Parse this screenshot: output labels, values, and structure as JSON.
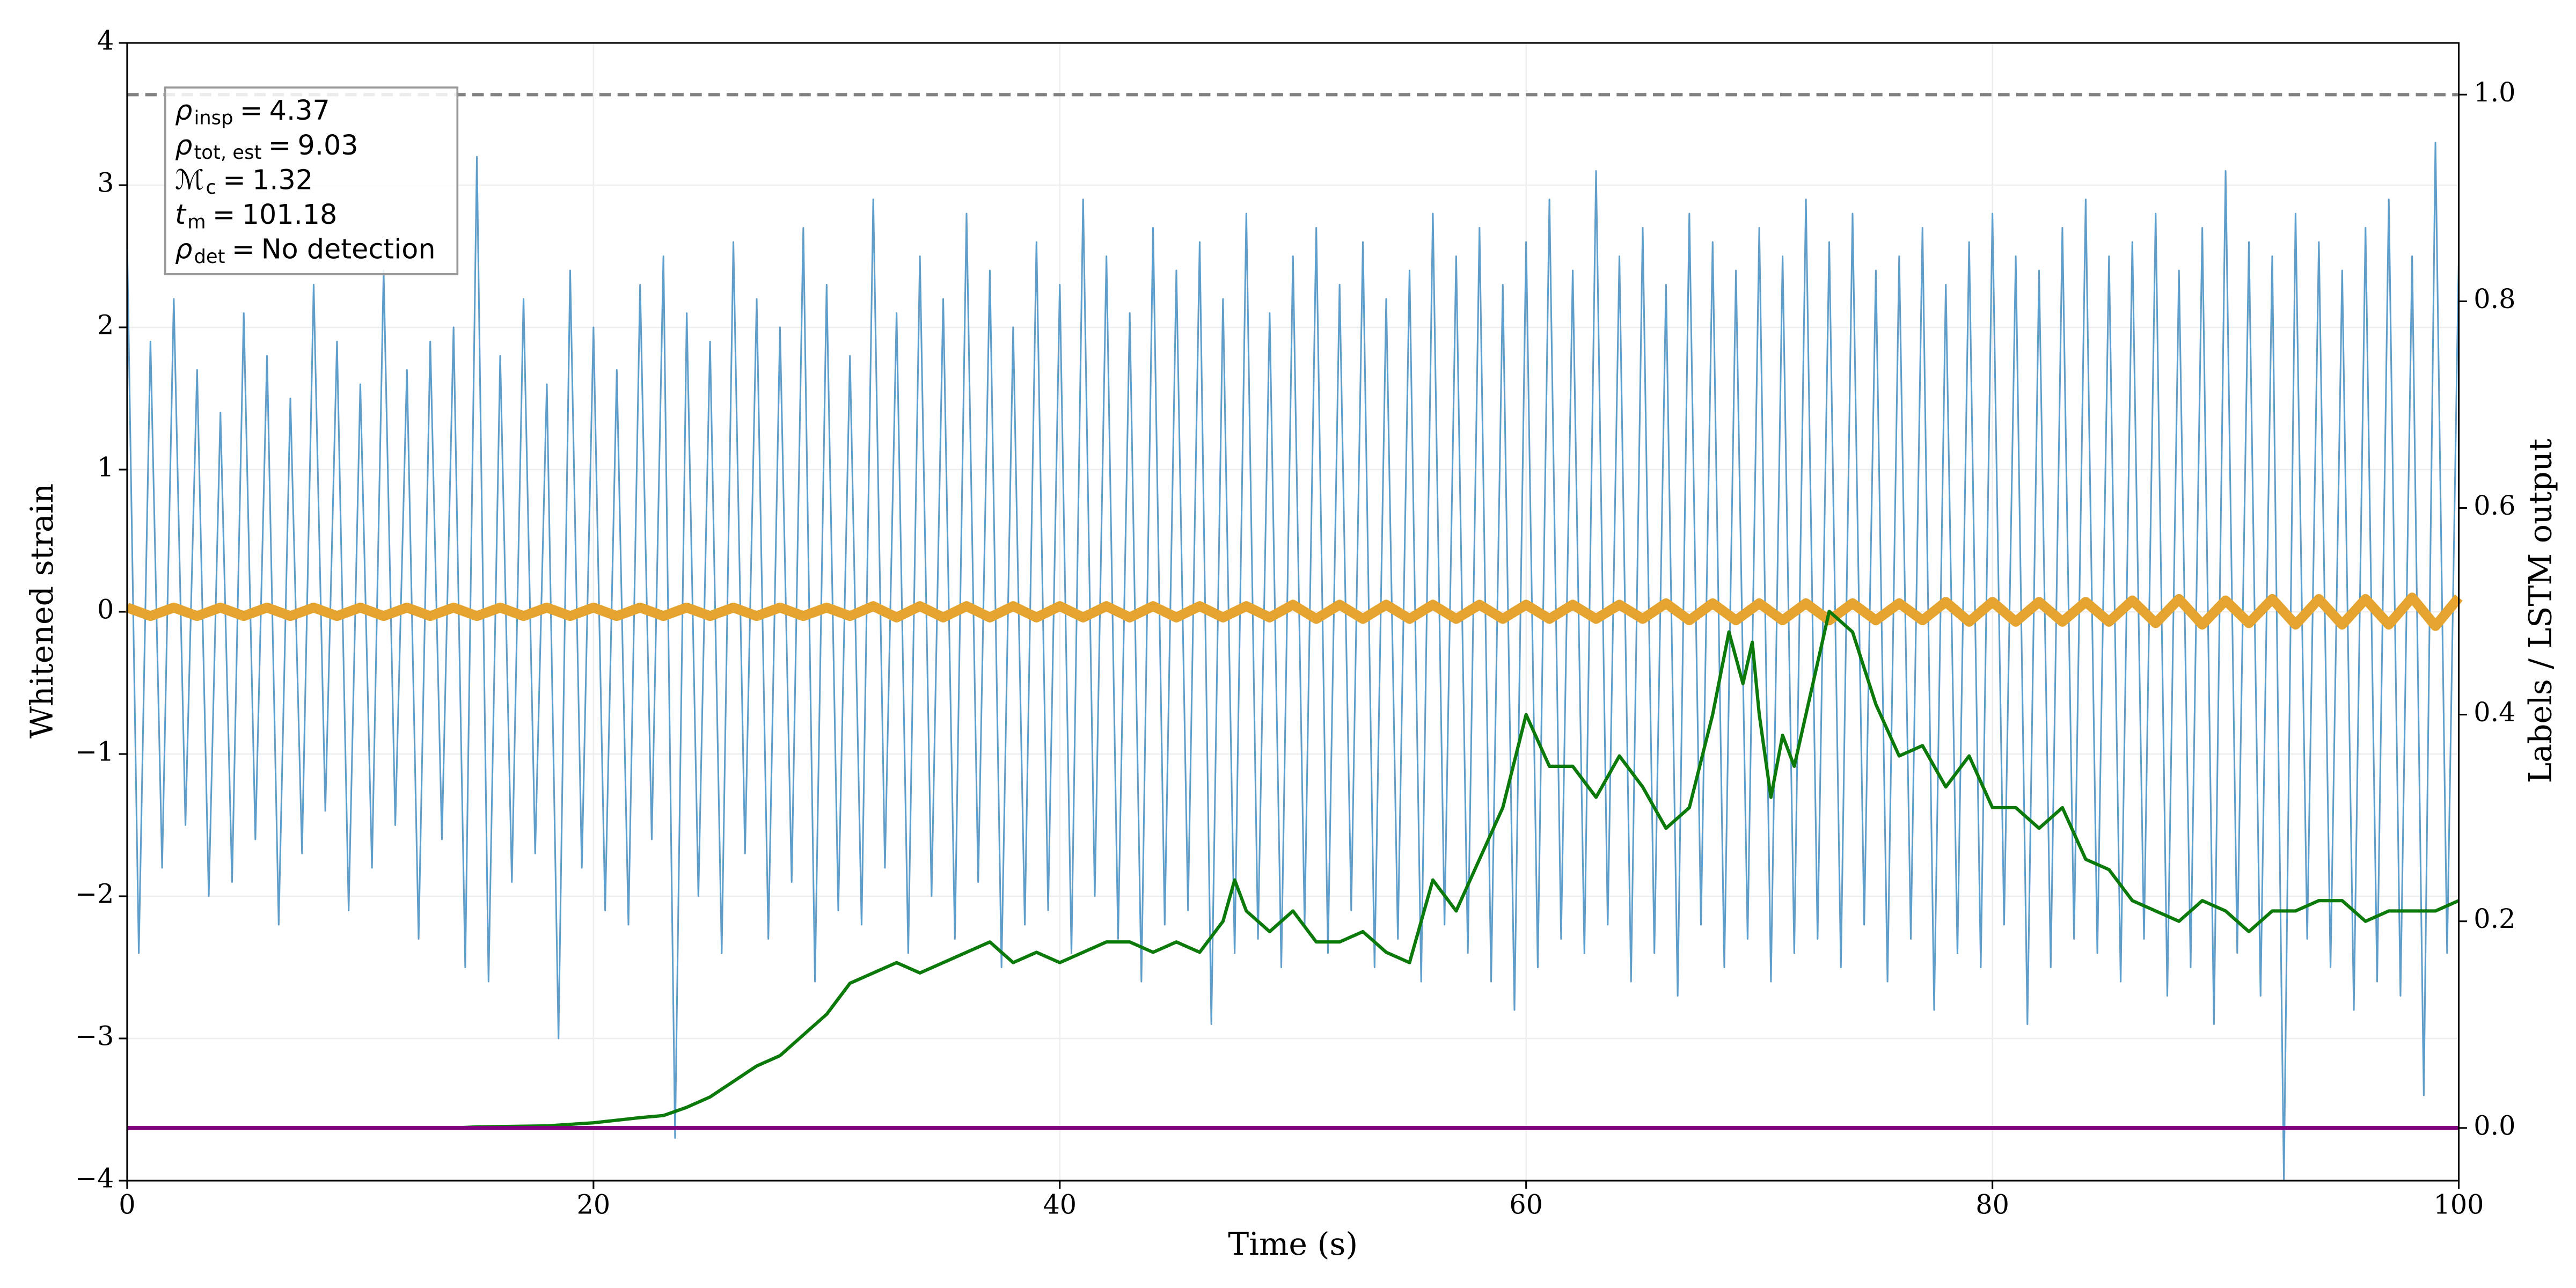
{
  "chart_data": {
    "type": "line",
    "xlabel": "Time (s)",
    "ylabel": "Whitened strain",
    "y2label": "Labels / LSTM output",
    "xlim": [
      0,
      100
    ],
    "ylim": [
      -4,
      4
    ],
    "y2lim": [
      -0.051,
      1.05
    ],
    "xticks": [
      0,
      20,
      40,
      60,
      80,
      100
    ],
    "yticks": [
      {
        "value": -4,
        "label": "−4"
      },
      {
        "value": -3,
        "label": "−3"
      },
      {
        "value": -2,
        "label": "−2"
      },
      {
        "value": -1,
        "label": "−1"
      },
      0,
      1,
      2,
      3,
      4
    ],
    "y2ticks": [
      {
        "value": 0,
        "label": "0.0"
      },
      0.2,
      0.4,
      0.6,
      0.8,
      {
        "value": 1,
        "label": "1.0"
      }
    ],
    "grid": true,
    "series": [
      {
        "color": "#5f9ecb",
        "axis": "y",
        "x": [
          0,
          0.5,
          1,
          1.5,
          2,
          2.5,
          3,
          3.5,
          4,
          4.5,
          5,
          5.5,
          6,
          6.5,
          7,
          7.5,
          8,
          8.5,
          9,
          9.5,
          10,
          10.5,
          11,
          11.5,
          12,
          12.5,
          13,
          13.5,
          14,
          14.5,
          15,
          15.5,
          16,
          16.5,
          17,
          17.5,
          18,
          18.5,
          19,
          19.5,
          20,
          20.5,
          21,
          21.5,
          22,
          22.5,
          23,
          23.5,
          24,
          24.5,
          25,
          25.5,
          26,
          26.5,
          27,
          27.5,
          28,
          28.5,
          29,
          29.5,
          30,
          30.5,
          31,
          31.5,
          32,
          32.5,
          33,
          33.5,
          34,
          34.5,
          35,
          35.5,
          36,
          36.5,
          37,
          37.5,
          38,
          38.5,
          39,
          39.5,
          40,
          40.5,
          41,
          41.5,
          42,
          42.5,
          43,
          43.5,
          44,
          44.5,
          45,
          45.5,
          46,
          46.5,
          47,
          47.5,
          48,
          48.5,
          49,
          49.5,
          50,
          50.5,
          51,
          51.5,
          52,
          52.5,
          53,
          53.5,
          54,
          54.5,
          55,
          55.5,
          56,
          56.5,
          57,
          57.5,
          58,
          58.5,
          59,
          59.5,
          60,
          60.5,
          61,
          61.5,
          62,
          62.5,
          63,
          63.5,
          64,
          64.5,
          65,
          65.5,
          66,
          66.5,
          67,
          67.5,
          68,
          68.5,
          69,
          69.5,
          70,
          70.5,
          71,
          71.5,
          72,
          72.5,
          73,
          73.5,
          74,
          74.5,
          75,
          75.5,
          76,
          76.5,
          77,
          77.5,
          78,
          78.5,
          79,
          79.5,
          80,
          80.5,
          81,
          81.5,
          82,
          82.5,
          83,
          83.5,
          84,
          84.5,
          85,
          85.5,
          86,
          86.5,
          87,
          87.5,
          88,
          88.5,
          89,
          89.5,
          90,
          90.5,
          91,
          91.5,
          92,
          92.5,
          93,
          93.5,
          94,
          94.5,
          95,
          95.5,
          96,
          96.5,
          97,
          97.5,
          98,
          98.5,
          99,
          99.5,
          100
        ],
        "values": [
          2.6,
          -2.4,
          1.9,
          -1.8,
          2.2,
          -1.5,
          1.7,
          -2.0,
          1.4,
          -1.9,
          2.1,
          -1.6,
          1.8,
          -2.2,
          1.5,
          -1.7,
          2.3,
          -1.4,
          1.9,
          -2.1,
          1.6,
          -1.8,
          2.4,
          -1.5,
          1.7,
          -2.3,
          1.9,
          -1.6,
          2.0,
          -2.5,
          3.2,
          -2.6,
          1.8,
          -1.9,
          2.2,
          -1.7,
          1.6,
          -3.0,
          2.4,
          -1.8,
          2.0,
          -2.1,
          1.7,
          -2.2,
          2.3,
          -1.6,
          2.5,
          -3.7,
          2.1,
          -2.0,
          1.9,
          -2.4,
          2.6,
          -1.7,
          2.2,
          -2.3,
          2.0,
          -1.9,
          2.7,
          -2.6,
          2.3,
          -2.1,
          1.8,
          -2.2,
          2.9,
          -1.8,
          2.1,
          -2.4,
          2.5,
          -2.0,
          2.2,
          -2.3,
          2.8,
          -1.9,
          2.4,
          -2.5,
          2.0,
          -2.2,
          2.6,
          -2.1,
          2.3,
          -2.4,
          2.9,
          -2.0,
          2.5,
          -2.3,
          2.1,
          -2.6,
          2.7,
          -2.2,
          2.4,
          -2.1,
          2.6,
          -2.9,
          2.2,
          -2.4,
          2.8,
          -2.3,
          2.1,
          -2.5,
          2.5,
          -2.2,
          2.7,
          -2.4,
          2.3,
          -2.1,
          2.6,
          -2.5,
          2.2,
          -2.3,
          2.4,
          -2.6,
          2.8,
          -2.2,
          2.5,
          -2.4,
          2.7,
          -2.6,
          2.3,
          -2.8,
          2.6,
          -2.5,
          2.9,
          -2.3,
          2.4,
          -2.4,
          3.1,
          -2.2,
          2.5,
          -2.6,
          2.7,
          -2.4,
          2.3,
          -2.7,
          2.8,
          -2.2,
          2.6,
          -2.5,
          2.4,
          -2.3,
          2.7,
          -2.6,
          2.5,
          -2.4,
          2.9,
          -2.3,
          2.6,
          -2.5,
          2.8,
          -2.2,
          2.4,
          -2.6,
          2.5,
          -2.3,
          2.7,
          -2.8,
          2.3,
          -2.4,
          2.6,
          -2.5,
          2.8,
          -2.2,
          2.5,
          -2.9,
          2.4,
          -2.5,
          2.7,
          -2.3,
          2.9,
          -2.4,
          2.5,
          -2.6,
          2.6,
          -2.3,
          2.8,
          -2.7,
          2.4,
          -2.5,
          2.7,
          -2.9,
          3.1,
          -2.4,
          2.6,
          -2.7,
          2.5,
          -4.0,
          2.8,
          -2.3,
          2.6,
          -2.5,
          2.4,
          -2.8,
          2.7,
          -2.6,
          2.9,
          -2.7,
          2.5,
          -3.4,
          3.3,
          -2.4,
          2.5
        ],
        "width": 1
      },
      {
        "color": "#e5a430",
        "axis": "y",
        "x": [
          0,
          1,
          2,
          3,
          4,
          5,
          6,
          7,
          8,
          9,
          10,
          11,
          12,
          13,
          14,
          15,
          16,
          17,
          18,
          19,
          20,
          21,
          22,
          23,
          24,
          25,
          26,
          27,
          28,
          29,
          30,
          31,
          32,
          33,
          34,
          35,
          36,
          37,
          38,
          39,
          40,
          41,
          42,
          43,
          44,
          45,
          46,
          47,
          48,
          49,
          50,
          51,
          52,
          53,
          54,
          55,
          56,
          57,
          58,
          59,
          60,
          61,
          62,
          63,
          64,
          65,
          66,
          67,
          68,
          69,
          70,
          71,
          72,
          73,
          74,
          75,
          76,
          77,
          78,
          79,
          80,
          81,
          82,
          83,
          84,
          85,
          86,
          87,
          88,
          89,
          90,
          91,
          92,
          93,
          94,
          95,
          96,
          97,
          98,
          99,
          100
        ],
        "values": [
          0.03,
          -0.03,
          0.03,
          -0.03,
          0.03,
          -0.03,
          0.03,
          -0.03,
          0.03,
          -0.03,
          0.03,
          -0.03,
          0.03,
          -0.03,
          0.03,
          -0.03,
          0.03,
          -0.03,
          0.03,
          -0.03,
          0.03,
          -0.03,
          0.03,
          -0.03,
          0.03,
          -0.03,
          0.03,
          -0.03,
          0.03,
          -0.03,
          0.03,
          -0.03,
          0.04,
          -0.04,
          0.04,
          -0.04,
          0.04,
          -0.04,
          0.04,
          -0.04,
          0.04,
          -0.04,
          0.04,
          -0.04,
          0.04,
          -0.04,
          0.04,
          -0.04,
          0.04,
          -0.04,
          0.05,
          -0.05,
          0.05,
          -0.05,
          0.05,
          -0.05,
          0.05,
          -0.05,
          0.05,
          -0.05,
          0.05,
          -0.05,
          0.05,
          -0.05,
          0.05,
          -0.05,
          0.06,
          -0.06,
          0.06,
          -0.06,
          0.06,
          -0.06,
          0.06,
          -0.06,
          0.06,
          -0.06,
          0.06,
          -0.06,
          0.07,
          -0.07,
          0.07,
          -0.07,
          0.07,
          -0.07,
          0.07,
          -0.07,
          0.08,
          -0.08,
          0.09,
          -0.09,
          0.08,
          -0.08,
          0.09,
          -0.09,
          0.09,
          -0.09,
          0.09,
          -0.09,
          0.1,
          -0.1,
          0.1
        ],
        "width": 6
      },
      {
        "color": "#0b7a0b",
        "axis": "y2",
        "x": [
          0,
          14,
          15,
          18,
          20,
          22,
          23,
          24,
          25,
          26,
          27,
          28,
          29,
          30,
          31,
          32,
          33,
          34,
          35,
          36,
          37,
          38,
          39,
          40,
          41,
          42,
          43,
          44,
          45,
          46,
          47,
          47.5,
          48,
          49,
          50,
          51,
          52,
          53,
          54,
          55,
          56,
          57,
          58,
          59,
          60,
          61,
          62,
          63,
          64,
          65,
          66,
          67,
          68,
          68.7,
          69.3,
          69.7,
          70,
          70.5,
          71,
          71.5,
          72,
          73,
          74,
          75,
          76,
          77,
          78,
          79,
          80,
          81,
          82,
          83,
          84,
          85,
          86,
          87,
          88,
          89,
          90,
          91,
          92,
          93,
          94,
          95,
          96,
          97,
          98,
          99,
          100
        ],
        "values": [
          0,
          0,
          0.001,
          0.002,
          0.005,
          0.01,
          0.012,
          0.02,
          0.03,
          0.045,
          0.06,
          0.07,
          0.09,
          0.11,
          0.14,
          0.15,
          0.16,
          0.15,
          0.16,
          0.17,
          0.18,
          0.16,
          0.17,
          0.16,
          0.17,
          0.18,
          0.18,
          0.17,
          0.18,
          0.17,
          0.2,
          0.24,
          0.21,
          0.19,
          0.21,
          0.18,
          0.18,
          0.19,
          0.17,
          0.16,
          0.24,
          0.21,
          0.26,
          0.31,
          0.4,
          0.35,
          0.35,
          0.32,
          0.36,
          0.33,
          0.29,
          0.31,
          0.4,
          0.48,
          0.43,
          0.47,
          0.4,
          0.32,
          0.38,
          0.35,
          0.4,
          0.5,
          0.48,
          0.41,
          0.36,
          0.37,
          0.33,
          0.36,
          0.31,
          0.31,
          0.29,
          0.31,
          0.26,
          0.25,
          0.22,
          0.21,
          0.2,
          0.22,
          0.21,
          0.19,
          0.21,
          0.21,
          0.22,
          0.22,
          0.2,
          0.21,
          0.21,
          0.21,
          0.22
        ],
        "width": 2
      },
      {
        "color": "#800080",
        "axis": "y2",
        "x": [
          0,
          100
        ],
        "values": [
          0,
          0
        ],
        "width": 2.5
      }
    ],
    "hlines": [
      {
        "value": 1,
        "axis": "y2",
        "color": "#808080",
        "style": "dashed"
      }
    ],
    "annotation": [
      {
        "symbol": "ρ",
        "sub": "insp",
        "sep": "=",
        "value": 4.37
      },
      {
        "symbol": "ρ",
        "sub": "tot, est",
        "sep": "=",
        "value": 9.03
      },
      {
        "symbol": "ℳ",
        "sub": "c",
        "sep": "=",
        "value": 1.32
      },
      {
        "symbol": "t",
        "sub": "m",
        "sep": "=",
        "value": 101.18
      },
      {
        "symbol": "ρ",
        "sub": "det",
        "sep": "=",
        "value": "No detection"
      }
    ]
  }
}
